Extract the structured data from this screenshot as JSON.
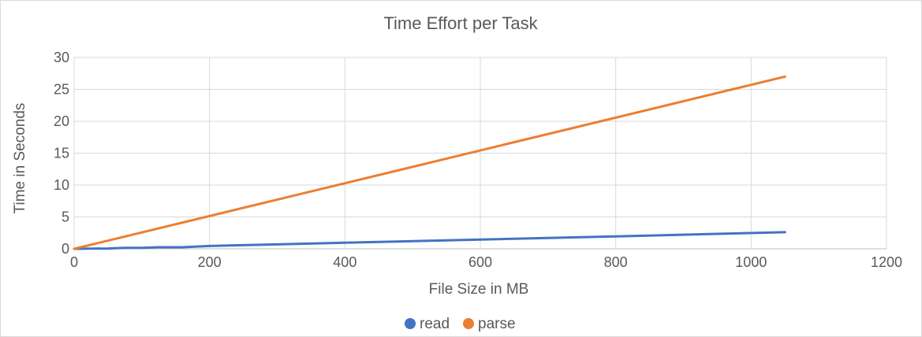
{
  "chart_data": {
    "type": "line",
    "title": "Time Effort per Task",
    "xlabel": "File Size in MB",
    "ylabel": "Time in Seconds",
    "xlim": [
      0,
      1200
    ],
    "ylim": [
      0,
      30
    ],
    "x_ticks": [
      0,
      200,
      400,
      600,
      800,
      1000,
      1200
    ],
    "y_ticks": [
      0,
      5,
      10,
      15,
      20,
      25,
      30
    ],
    "grid": true,
    "legend_position": "bottom",
    "series": [
      {
        "name": "read",
        "color": "#4472c4",
        "points": [
          [
            0,
            0
          ],
          [
            50,
            0.05
          ],
          [
            75,
            0.15
          ],
          [
            100,
            0.15
          ],
          [
            125,
            0.25
          ],
          [
            160,
            0.25
          ],
          [
            200,
            0.45
          ],
          [
            400,
            0.95
          ],
          [
            600,
            1.45
          ],
          [
            800,
            1.95
          ],
          [
            1050,
            2.6
          ]
        ]
      },
      {
        "name": "parse",
        "color": "#ed7d31",
        "points": [
          [
            0,
            0
          ],
          [
            1050,
            27
          ]
        ]
      }
    ]
  }
}
